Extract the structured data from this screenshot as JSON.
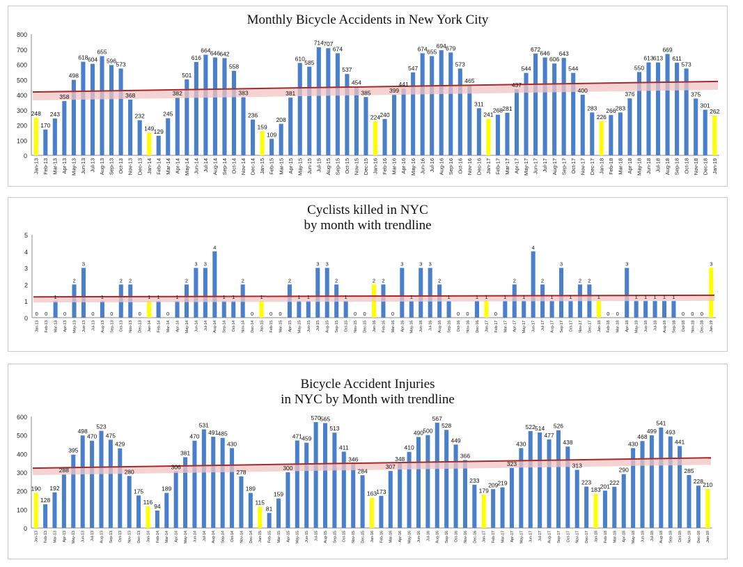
{
  "colors": {
    "bar": "#4a7fcb",
    "highlight": "#ffff00",
    "trend": "#a52a2a",
    "trend_band": "#f2c4c4",
    "axis": "#888888"
  },
  "chart_data": [
    {
      "type": "bar",
      "title": "Monthly Bicycle Accidents in New York City",
      "categories": [
        "Jan-13",
        "Feb-13",
        "Mar-13",
        "Apr-13",
        "May-13",
        "Jun-13",
        "Jul-13",
        "Aug-13",
        "Sep-13",
        "Oct-13",
        "Nov-13",
        "Dec-13",
        "Jan-14",
        "Feb-14",
        "Mar-14",
        "Apr-14",
        "May-14",
        "Jun-14",
        "Jul-14",
        "Aug-14",
        "Sep-14",
        "Oct-14",
        "Nov-14",
        "Dec-14",
        "Jan-15",
        "Feb-15",
        "Mar-15",
        "Apr-15",
        "May-15",
        "Jun-15",
        "Jul-15",
        "Aug-15",
        "Sep-15",
        "Oct-15",
        "Nov-15",
        "Dec-15",
        "Jan-16",
        "Feb-16",
        "Mar-16",
        "Apr-16",
        "May-16",
        "Jun-16",
        "Jul-16",
        "Aug-16",
        "Sep-16",
        "Oct-16",
        "Nov-16",
        "Dec-16",
        "Jan-17",
        "Feb-17",
        "Mar-17",
        "Apr-17",
        "May-17",
        "Jun-17",
        "Jul-17",
        "Aug-17",
        "Sep-17",
        "Oct-17",
        "Nov-17",
        "Dec-17",
        "Jan-18",
        "Feb-18",
        "Mar-18",
        "Apr-18",
        "May-18",
        "Jun-18",
        "Jul-18",
        "Aug-18",
        "Sep-18",
        "Oct-18",
        "Nov-18",
        "Dec-18",
        "Jan-19"
      ],
      "values": [
        248,
        170,
        243,
        358,
        498,
        618,
        604,
        655,
        596,
        573,
        368,
        232,
        149,
        129,
        245,
        382,
        501,
        616,
        664,
        646,
        642,
        558,
        383,
        236,
        159,
        109,
        208,
        381,
        610,
        585,
        714,
        707,
        674,
        537,
        454,
        385,
        224,
        240,
        399,
        441,
        547,
        674,
        655,
        694,
        679,
        573,
        465,
        311,
        241,
        268,
        281,
        437,
        544,
        672,
        646,
        606,
        643,
        544,
        400,
        283,
        226,
        266,
        283,
        376,
        550,
        613,
        613,
        669,
        611,
        573,
        375,
        301,
        262
      ],
      "highlight": [
        0,
        12,
        24,
        36,
        48,
        60,
        72
      ],
      "ylim": [
        0,
        800
      ],
      "yticks": [
        0,
        100,
        200,
        300,
        400,
        500,
        600,
        700,
        800
      ],
      "trendline": [
        418,
        488
      ],
      "legend": "none",
      "grid": false
    },
    {
      "type": "bar",
      "title": "Cyclists killed in NYC\nby month with trendline",
      "categories": [
        "Jan-13",
        "Feb-13",
        "Mar-13",
        "Apr-13",
        "May-13",
        "Jun-13",
        "Jul-13",
        "Aug-13",
        "Sep-13",
        "Oct-13",
        "Nov-13",
        "Dec-13",
        "Jan-14",
        "Feb-14",
        "Mar-14",
        "Apr-14",
        "May-14",
        "Jun-14",
        "Jul-14",
        "Aug-14",
        "Sep-14",
        "Oct-14",
        "Nov-14",
        "Dec-14",
        "Jan-15",
        "Feb-15",
        "Mar-15",
        "Apr-15",
        "May-15",
        "Jun-15",
        "Jul-15",
        "Aug-15",
        "Sep-15",
        "Oct-15",
        "Nov-15",
        "Dec-15",
        "Jan-16",
        "Feb-16",
        "Mar-16",
        "Apr-16",
        "May-16",
        "Jun-16",
        "Jul-16",
        "Aug-16",
        "Sep-16",
        "Oct-16",
        "Nov-16",
        "Dec-16",
        "Jan-17",
        "Feb-17",
        "Mar-17",
        "Apr-17",
        "May-17",
        "Jun-17",
        "Jul-17",
        "Aug-17",
        "Sep-17",
        "Oct-17",
        "Nov-17",
        "Dec-17",
        "Jan-18",
        "Feb-18",
        "Mar-18",
        "Apr-18",
        "May-18",
        "Jun-18",
        "Jul-18",
        "Aug-18",
        "Sep-18",
        "Oct-18",
        "Nov-18",
        "Dec-18",
        "Jan-19"
      ],
      "values": [
        0,
        0,
        1,
        0,
        2,
        3,
        0,
        1,
        0,
        2,
        2,
        0,
        1,
        1,
        0,
        1,
        2,
        3,
        3,
        4,
        1,
        1,
        2,
        0,
        1,
        0,
        0,
        2,
        1,
        1,
        3,
        3,
        2,
        1,
        0,
        0,
        2,
        2,
        0,
        3,
        1,
        3,
        3,
        2,
        1,
        0,
        0,
        1,
        1,
        0,
        1,
        2,
        1,
        4,
        2,
        1,
        3,
        1,
        2,
        2,
        1,
        0,
        0,
        3,
        1,
        1,
        1,
        1,
        1,
        0,
        0,
        0,
        3
      ],
      "highlight": [
        0,
        12,
        24,
        36,
        48,
        60,
        72
      ],
      "ylim": [
        0,
        5
      ],
      "yticks": [
        0,
        1,
        2,
        3,
        4,
        5
      ],
      "trendline": [
        1.25,
        1.35
      ],
      "legend": "none",
      "grid": false
    },
    {
      "type": "bar",
      "title": "Bicycle Accident Injuries\nin NYC by Month with trendline",
      "categories": [
        "Jan-13",
        "Feb-13",
        "Mar-13",
        "Apr-13",
        "May-13",
        "Jun-13",
        "Jul-13",
        "Aug-13",
        "Sep-13",
        "Oct-13",
        "Nov-13",
        "Dec-13",
        "Jan-14",
        "Feb-14",
        "Mar-14",
        "Apr-14",
        "May-14",
        "Jun-14",
        "Jul-14",
        "Aug-14",
        "Sep-14",
        "Oct-14",
        "Nov-14",
        "Dec-14",
        "Jan-15",
        "Feb-15",
        "Mar-15",
        "Apr-15",
        "May-15",
        "Jun-15",
        "Jul-15",
        "Aug-15",
        "Sep-15",
        "Oct-15",
        "Nov-15",
        "Dec-15",
        "Jan-16",
        "Feb-16",
        "Mar-16",
        "Apr-16",
        "May-16",
        "Jun-16",
        "Jul-16",
        "Aug-16",
        "Sep-16",
        "Oct-16",
        "Nov-16",
        "Dec-16",
        "Jan-17",
        "Feb-17",
        "Mar-17",
        "Apr-17",
        "May-17",
        "Jun-17",
        "Jul-17",
        "Aug-17",
        "Sep-17",
        "Oct-17",
        "Nov-17",
        "Dec-17",
        "Jan-18",
        "Feb-18",
        "Mar-18",
        "Apr-18",
        "May-18",
        "Jun-18",
        "Jul-18",
        "Aug-18",
        "Sep-18",
        "Oct-18",
        "Nov-18",
        "Dec-18",
        "Jan-19"
      ],
      "values": [
        190,
        128,
        192,
        288,
        395,
        498,
        470,
        523,
        475,
        429,
        280,
        175,
        116,
        94,
        189,
        306,
        381,
        470,
        531,
        491,
        485,
        430,
        278,
        189,
        115,
        81,
        159,
        300,
        471,
        459,
        570,
        565,
        513,
        411,
        346,
        284,
        163,
        173,
        307,
        348,
        410,
        490,
        500,
        567,
        528,
        449,
        366,
        233,
        179,
        209,
        219,
        323,
        430,
        522,
        514,
        477,
        526,
        438,
        313,
        223,
        183,
        201,
        222,
        290,
        430,
        468,
        499,
        541,
        493,
        441,
        285,
        228,
        210
      ],
      "highlight": [
        0,
        12,
        24,
        36,
        48,
        60,
        72
      ],
      "ylim": [
        0,
        600
      ],
      "yticks": [
        0,
        100,
        200,
        300,
        400,
        500,
        600
      ],
      "trendline": [
        322,
        378
      ],
      "legend": "none",
      "grid": false
    }
  ]
}
